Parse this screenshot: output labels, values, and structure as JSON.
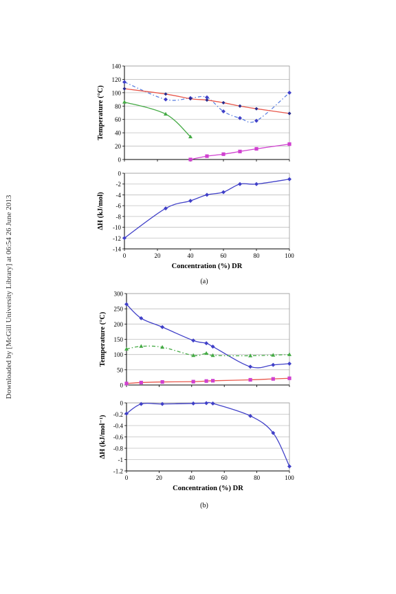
{
  "sidebar": {
    "download_notice": "Downloaded by [McGill University Library] at 06:54 26 June 2013"
  },
  "panels": [
    {
      "caption": "(a)"
    },
    {
      "caption": "(b)"
    }
  ],
  "colors": {
    "blue": "#4040c8",
    "blue_dash": "#5b7fe0",
    "red": "#e8564a",
    "green": "#44aa44",
    "magenta": "#d040d0",
    "grid": "#bfbfbf"
  },
  "chart_data": [
    {
      "panel": "(a)",
      "type": "line",
      "ylabel": "Temperature (°C)",
      "xlabel": "",
      "xlim": [
        0,
        100
      ],
      "ylim": [
        0,
        140
      ],
      "xticks": [
        0,
        20,
        40,
        60,
        80,
        100
      ],
      "yticks": [
        0,
        20,
        40,
        60,
        80,
        100,
        120,
        140
      ],
      "show_x_tick_labels": false,
      "grid": true,
      "series": [
        {
          "color": "blue_dash",
          "dash": true,
          "marker": "diamond",
          "x": [
            0,
            25,
            40,
            50,
            60,
            70,
            80,
            100
          ],
          "y": [
            116,
            90,
            92,
            93,
            72,
            62,
            58,
            100
          ]
        },
        {
          "color": "red",
          "dash": false,
          "marker": "circle-dark",
          "x": [
            0,
            25,
            40,
            50,
            60,
            70,
            80,
            100
          ],
          "y": [
            106,
            98,
            91,
            89,
            85,
            80,
            76,
            69
          ]
        },
        {
          "color": "green",
          "dash": false,
          "marker": "triangle",
          "x": [
            0,
            25,
            40
          ],
          "y": [
            86,
            68,
            34
          ]
        },
        {
          "color": "magenta",
          "dash": false,
          "marker": "square",
          "x": [
            40,
            50,
            60,
            70,
            80,
            100
          ],
          "y": [
            0,
            5,
            8,
            12,
            16,
            23
          ]
        }
      ]
    },
    {
      "panel": "(a)",
      "type": "line",
      "ylabel": "ΔH (kJ/mol)",
      "xlabel": "Concentration (%) DR",
      "xlim": [
        0,
        100
      ],
      "ylim": [
        -14,
        0
      ],
      "xticks": [
        0,
        20,
        40,
        60,
        80,
        100
      ],
      "yticks": [
        0,
        -2,
        -4,
        -6,
        -8,
        -10,
        -12,
        -14
      ],
      "show_x_tick_labels": true,
      "grid": true,
      "series": [
        {
          "color": "blue",
          "dash": false,
          "marker": "diamond",
          "x": [
            0,
            25,
            40,
            50,
            60,
            70,
            80,
            100
          ],
          "y": [
            -12,
            -6.5,
            -5.1,
            -4,
            -3.5,
            -2,
            -2,
            -1.1
          ]
        }
      ]
    },
    {
      "panel": "(b)",
      "type": "line",
      "ylabel": "Temperature (°C)",
      "xlabel": "",
      "xlim": [
        0,
        100
      ],
      "ylim": [
        0,
        300
      ],
      "xticks": [
        0,
        20,
        40,
        60,
        80,
        100
      ],
      "yticks": [
        0,
        50,
        100,
        150,
        200,
        250,
        300
      ],
      "show_x_tick_labels": false,
      "grid": true,
      "series": [
        {
          "color": "blue",
          "dash": false,
          "marker": "diamond",
          "x": [
            0,
            9,
            22,
            41,
            49,
            53,
            76,
            90,
            100
          ],
          "y": [
            265,
            219,
            190,
            146,
            137,
            126,
            60,
            66,
            70
          ]
        },
        {
          "color": "green",
          "dash": true,
          "marker": "triangle",
          "x": [
            0,
            9,
            22,
            41,
            49,
            53,
            76,
            90,
            100
          ],
          "y": [
            118,
            127,
            124,
            97,
            104,
            97,
            96,
            98,
            100
          ]
        },
        {
          "color": "red",
          "dash": false,
          "marker": "square-magenta",
          "x": [
            0,
            9,
            22,
            41,
            49,
            53,
            76,
            90,
            100
          ],
          "y": [
            5,
            8,
            10,
            11,
            13,
            14,
            17,
            20,
            22
          ]
        }
      ]
    },
    {
      "panel": "(b)",
      "type": "line",
      "ylabel": "ΔH (kJ/mol⁻¹)",
      "xlabel": "Concentration (%) DR",
      "xlim": [
        0,
        100
      ],
      "ylim": [
        -1.2,
        0
      ],
      "xticks": [
        0,
        20,
        40,
        60,
        80,
        100
      ],
      "yticks": [
        0,
        -0.2,
        -0.4,
        -0.6,
        -0.8,
        -1,
        -1.2
      ],
      "show_x_tick_labels": true,
      "grid": true,
      "series": [
        {
          "color": "blue",
          "dash": false,
          "marker": "diamond",
          "x": [
            0,
            9,
            22,
            41,
            49,
            53,
            76,
            90,
            100
          ],
          "y": [
            -0.19,
            -0.02,
            -0.02,
            -0.01,
            -0.005,
            -0.01,
            -0.23,
            -0.53,
            -1.12
          ]
        }
      ]
    }
  ]
}
